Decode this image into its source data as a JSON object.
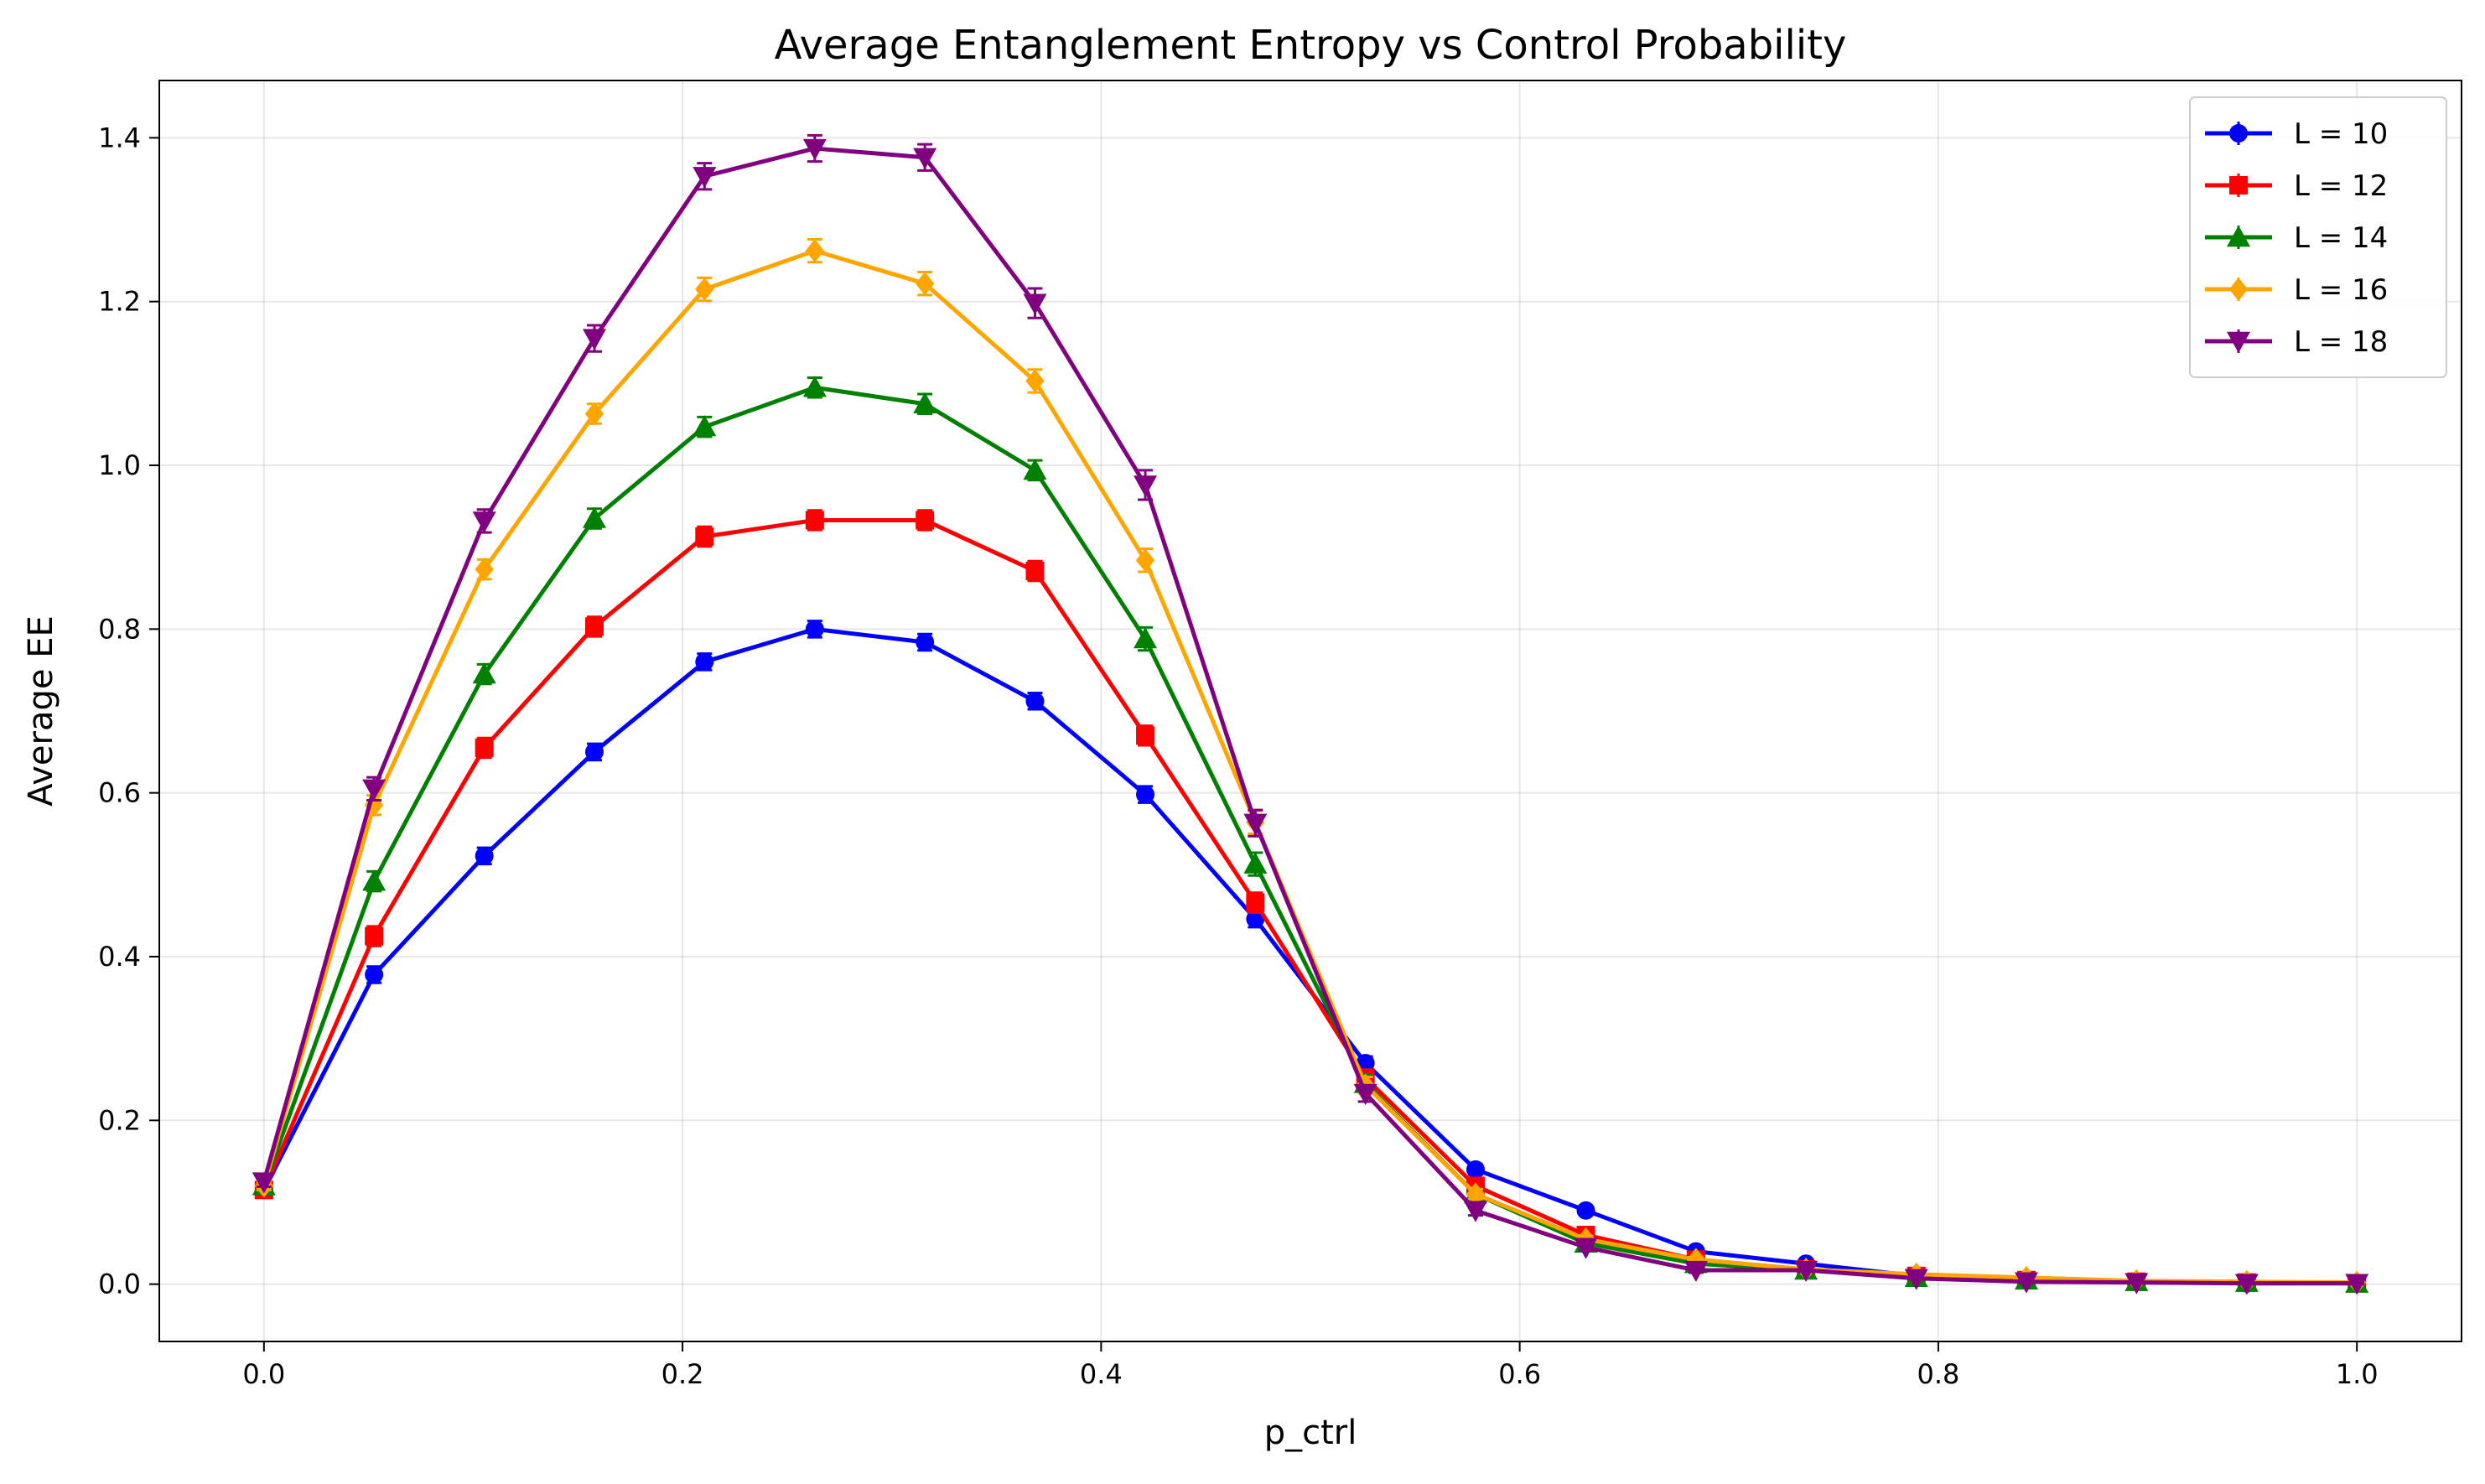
{
  "chart_data": {
    "type": "line",
    "title": "Average Entanglement Entropy vs Control Probability",
    "xlabel": "p_ctrl",
    "ylabel": "Average EE",
    "xlim": [
      -0.05,
      1.05
    ],
    "ylim": [
      -0.07,
      1.47
    ],
    "xticks": [
      0.0,
      0.2,
      0.4,
      0.6,
      0.8,
      1.0
    ],
    "xtick_labels": [
      "0.0",
      "0.2",
      "0.4",
      "0.6",
      "0.8",
      "1.0"
    ],
    "yticks": [
      0.0,
      0.2,
      0.4,
      0.6,
      0.8,
      1.0,
      1.2,
      1.4
    ],
    "ytick_labels": [
      "0.0",
      "0.2",
      "0.4",
      "0.6",
      "0.8",
      "1.0",
      "1.2",
      "1.4"
    ],
    "grid": true,
    "legend_position": "top-right",
    "x": [
      0.0,
      0.0526,
      0.1053,
      0.1579,
      0.2105,
      0.2632,
      0.3158,
      0.3684,
      0.4211,
      0.4737,
      0.5263,
      0.5789,
      0.6316,
      0.6842,
      0.7368,
      0.7895,
      0.8421,
      0.8947,
      0.9474,
      1.0
    ],
    "series": [
      {
        "name": "L = 10",
        "color": "#0000ff",
        "marker": "circle",
        "values": [
          0.115,
          0.378,
          0.523,
          0.65,
          0.76,
          0.8,
          0.784,
          0.712,
          0.598,
          0.446,
          0.27,
          0.14,
          0.09,
          0.04,
          0.025,
          0.01,
          0.005,
          0.003,
          0.001,
          0.001
        ],
        "errors": [
          0.005,
          0.01,
          0.01,
          0.01,
          0.01,
          0.01,
          0.01,
          0.01,
          0.01,
          0.01,
          0.008,
          0.006,
          0.005,
          0.003,
          0.002,
          0.001,
          0.001,
          0.001,
          0.001,
          0.001
        ]
      },
      {
        "name": "L = 12",
        "color": "#ff0000",
        "marker": "square",
        "values": [
          0.115,
          0.425,
          0.655,
          0.803,
          0.913,
          0.933,
          0.933,
          0.871,
          0.67,
          0.466,
          0.252,
          0.12,
          0.06,
          0.03,
          0.018,
          0.01,
          0.005,
          0.003,
          0.002,
          0.001
        ],
        "errors": [
          0.005,
          0.012,
          0.012,
          0.012,
          0.012,
          0.012,
          0.012,
          0.012,
          0.012,
          0.012,
          0.01,
          0.006,
          0.004,
          0.003,
          0.002,
          0.001,
          0.001,
          0.001,
          0.001,
          0.001
        ]
      },
      {
        "name": "L = 14",
        "color": "#008000",
        "marker": "triangle-up",
        "values": [
          0.12,
          0.492,
          0.745,
          0.935,
          1.047,
          1.095,
          1.075,
          0.994,
          0.788,
          0.513,
          0.245,
          0.11,
          0.05,
          0.025,
          0.017,
          0.008,
          0.005,
          0.003,
          0.002,
          0.001
        ],
        "errors": [
          0.005,
          0.012,
          0.012,
          0.012,
          0.012,
          0.012,
          0.012,
          0.012,
          0.014,
          0.014,
          0.01,
          0.006,
          0.004,
          0.003,
          0.002,
          0.001,
          0.001,
          0.001,
          0.001,
          0.001
        ]
      },
      {
        "name": "L = 16",
        "color": "#ffa500",
        "marker": "diamond",
        "values": [
          0.12,
          0.585,
          0.873,
          1.063,
          1.215,
          1.262,
          1.222,
          1.103,
          0.884,
          0.564,
          0.243,
          0.11,
          0.055,
          0.03,
          0.018,
          0.012,
          0.008,
          0.004,
          0.003,
          0.002
        ],
        "errors": [
          0.005,
          0.012,
          0.012,
          0.012,
          0.014,
          0.014,
          0.014,
          0.014,
          0.014,
          0.014,
          0.01,
          0.006,
          0.004,
          0.003,
          0.002,
          0.001,
          0.001,
          0.001,
          0.001,
          0.001
        ]
      },
      {
        "name": "L = 18",
        "color": "#800080",
        "marker": "triangle-down",
        "values": [
          0.125,
          0.605,
          0.932,
          1.155,
          1.353,
          1.387,
          1.376,
          1.198,
          0.976,
          0.563,
          0.233,
          0.09,
          0.045,
          0.017,
          0.017,
          0.007,
          0.003,
          0.002,
          0.001,
          0.001
        ],
        "errors": [
          0.006,
          0.014,
          0.014,
          0.016,
          0.016,
          0.016,
          0.016,
          0.018,
          0.018,
          0.016,
          0.01,
          0.006,
          0.004,
          0.003,
          0.002,
          0.001,
          0.001,
          0.001,
          0.001,
          0.001
        ]
      }
    ]
  }
}
